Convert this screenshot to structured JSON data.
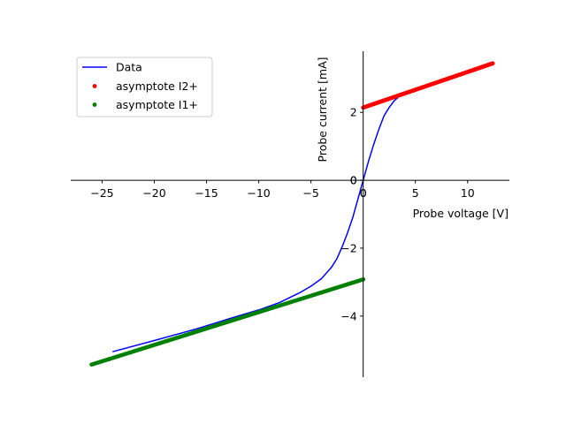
{
  "chart_data": {
    "type": "line",
    "xlabel": "Probe voltage [V]",
    "ylabel": "Probe current [mA]",
    "xlim": [
      -28,
      14
    ],
    "ylim": [
      -5.8,
      3.8
    ],
    "xticks": [
      -25,
      -20,
      -15,
      -10,
      -5,
      0,
      5,
      10
    ],
    "yticks": [
      -4,
      -2,
      0,
      2
    ],
    "grid": false,
    "legend_position": "top-left",
    "colors": {
      "data": "#0000ff",
      "i2": "#ff0000",
      "i1": "#008000"
    },
    "series": [
      {
        "name": "Data",
        "kind": "line",
        "x": [
          -24,
          -20,
          -16,
          -12,
          -10,
          -8,
          -6,
          -5,
          -4,
          -3,
          -2.5,
          -2,
          -1.5,
          -1,
          -0.5,
          0,
          0.5,
          1,
          1.5,
          2,
          2.5,
          3,
          3.5,
          4,
          4.5,
          5
        ],
        "y": [
          -5.05,
          -4.72,
          -4.38,
          -4.0,
          -3.82,
          -3.6,
          -3.3,
          -3.12,
          -2.9,
          -2.55,
          -2.3,
          -1.95,
          -1.55,
          -1.1,
          -0.55,
          0.0,
          0.55,
          1.05,
          1.5,
          1.9,
          2.15,
          2.35,
          2.48,
          2.57,
          2.63,
          2.66
        ]
      },
      {
        "name": "asymptote I2+",
        "kind": "dots",
        "x_start": 0,
        "x_end": 12.4,
        "slope": 0.105,
        "intercept": 2.14
      },
      {
        "name": "asymptote I1+",
        "kind": "dots",
        "x_start": -26,
        "x_end": 0,
        "slope": 0.0965,
        "intercept": -2.92
      }
    ]
  }
}
